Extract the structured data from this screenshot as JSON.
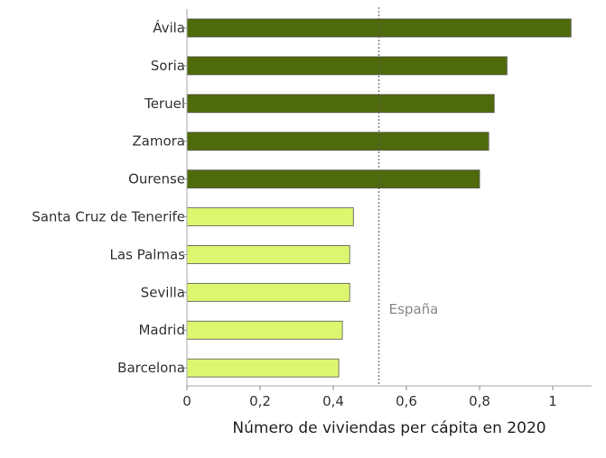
{
  "chart_data": {
    "type": "bar",
    "orientation": "horizontal",
    "title": "",
    "xlabel": "Número de viviendas per cápita en 2020",
    "ylabel": "",
    "xlim": [
      0,
      1.1
    ],
    "xticks": [
      0,
      0.2,
      0.4,
      0.6,
      0.8,
      1
    ],
    "xtick_labels": [
      "0",
      "0,2",
      "0,4",
      "0,6",
      "0,8",
      "1"
    ],
    "grid": false,
    "categories": [
      "Ávila",
      "Soria",
      "Teruel",
      "Zamora",
      "Ourense",
      "Santa Cruz de Tenerife",
      "Las Palmas",
      "Sevilla",
      "Madrid",
      "Barcelona"
    ],
    "values": [
      1.05,
      0.875,
      0.84,
      0.825,
      0.8,
      0.455,
      0.445,
      0.445,
      0.425,
      0.415
    ],
    "bar_colors": [
      "#4f6a0a",
      "#4f6a0a",
      "#4f6a0a",
      "#4f6a0a",
      "#4f6a0a",
      "#dcf76f",
      "#dcf76f",
      "#dcf76f",
      "#dcf76f",
      "#dcf76f"
    ],
    "reference_line": {
      "label": "España",
      "value": 0.525,
      "style": "dotted",
      "color": "#555555"
    }
  }
}
